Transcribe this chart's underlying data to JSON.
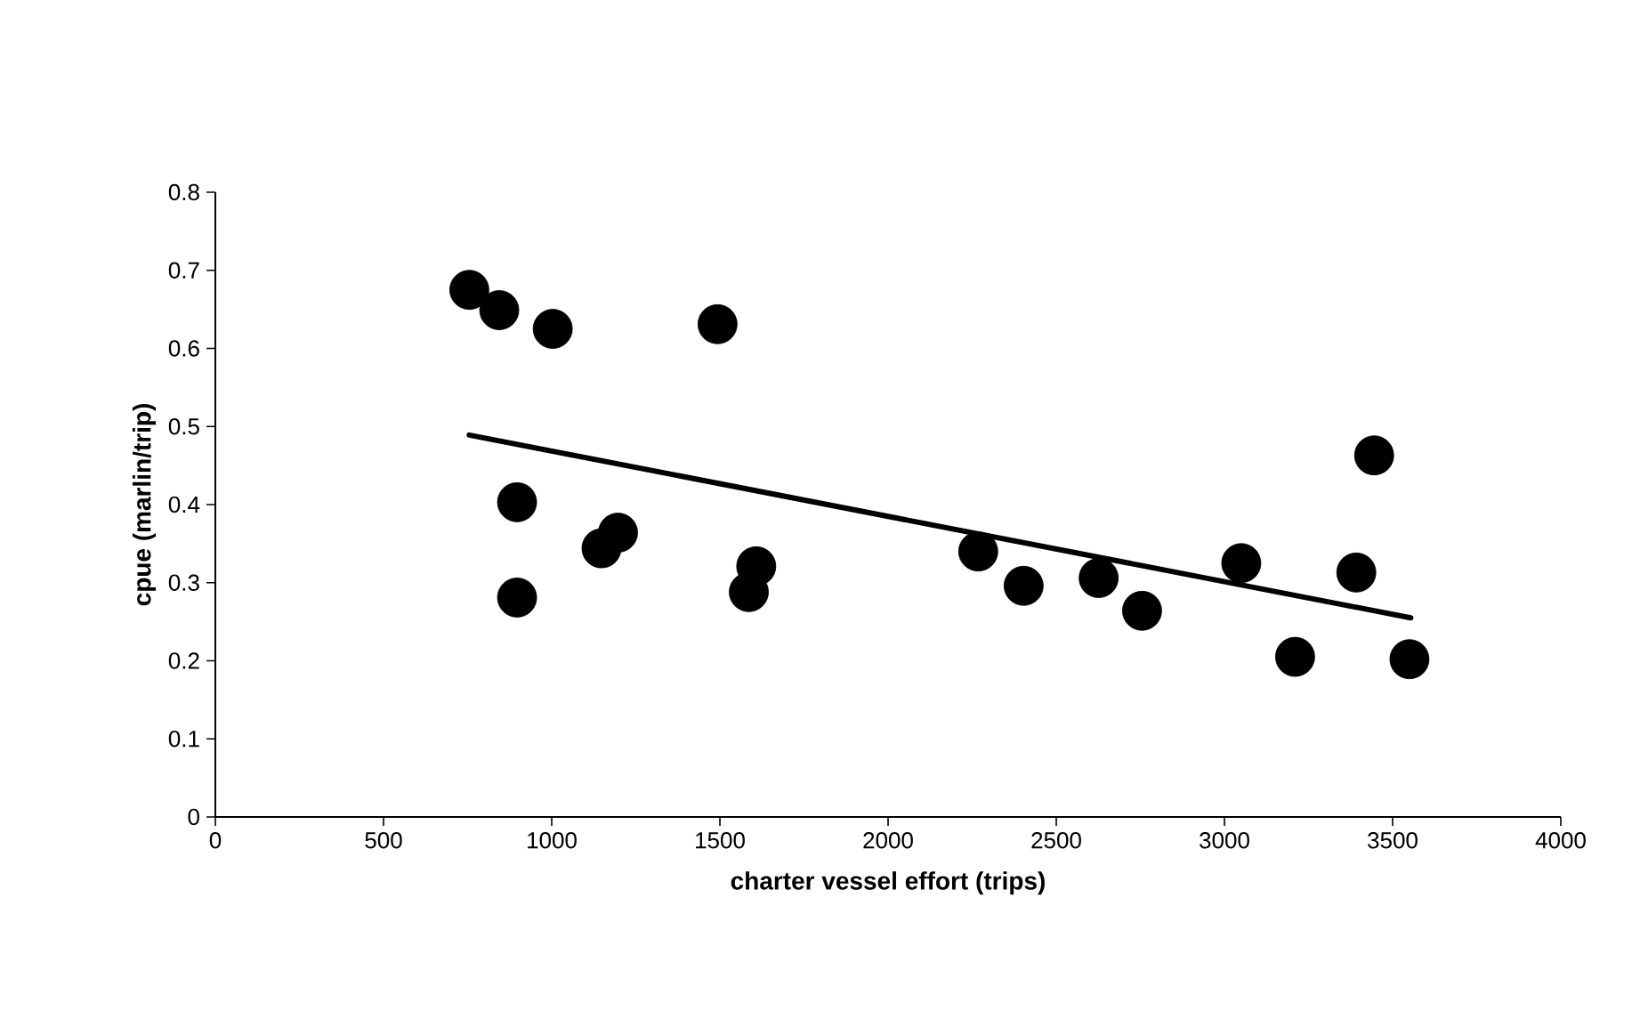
{
  "chart_data": {
    "type": "scatter",
    "xlabel": "charter vessel effort (trips)",
    "ylabel": "cpue (marlin/trip)",
    "xlim": [
      0,
      4000
    ],
    "xticks": [
      0,
      500,
      1000,
      1500,
      2000,
      2500,
      3000,
      3500,
      4000
    ],
    "ylim": [
      0,
      0.8
    ],
    "yticks": [
      0,
      0.1,
      0.2,
      0.3,
      0.4,
      0.5,
      0.6,
      0.7,
      0.8
    ],
    "grid": false,
    "marker": "circle",
    "series": [
      {
        "color": "#000000",
        "x": [
          755,
          844,
          1003,
          1493,
          897,
          897,
          1148,
          1197,
          1586,
          1608,
          2268,
          2403,
          2626,
          2755,
          3050,
          3210,
          3392,
          3445,
          3550
        ],
        "values": [
          0.675,
          0.649,
          0.625,
          0.631,
          0.403,
          0.281,
          0.344,
          0.364,
          0.288,
          0.321,
          0.34,
          0.296,
          0.306,
          0.264,
          0.325,
          0.205,
          0.313,
          0.463,
          0.202
        ]
      },
      {
        "type": "line",
        "color": "#000000",
        "marker": "none",
        "line_style": "solid",
        "x": [
          755,
          3554
        ],
        "values": [
          0.489,
          0.255
        ]
      }
    ]
  }
}
